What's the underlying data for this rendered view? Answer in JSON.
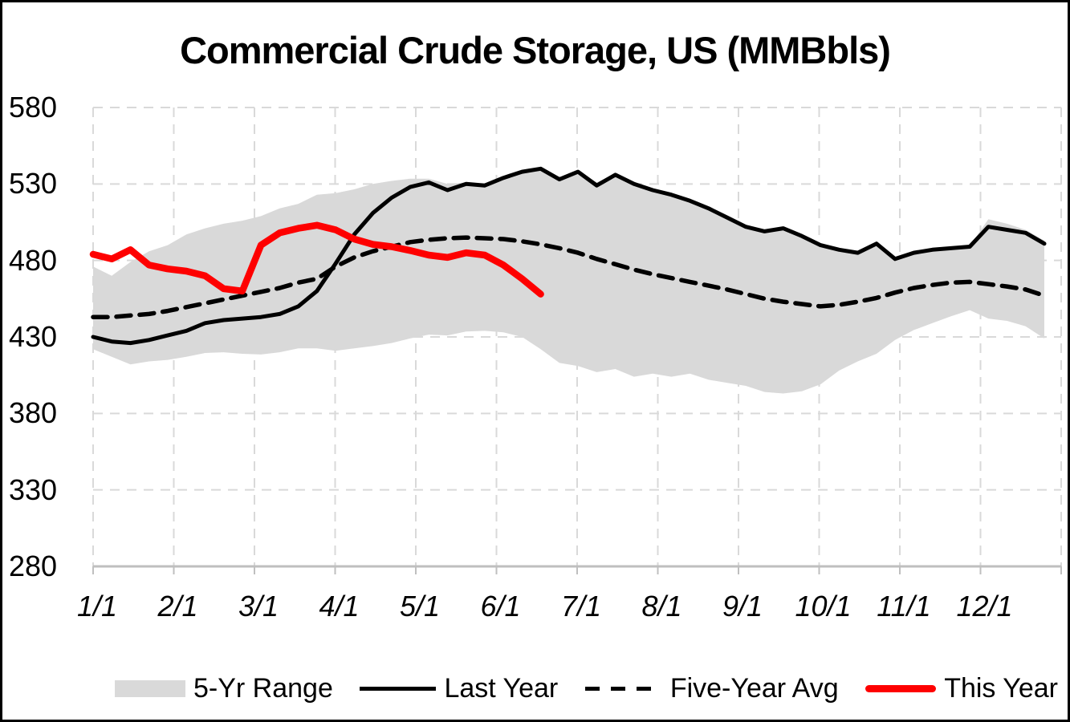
{
  "title": "Commercial Crude Storage, US (MMBbls)",
  "colors": {
    "background": "#ffffff",
    "border": "#000000",
    "band_fill": "#d9d9d9",
    "gridline": "#d9d9d9",
    "axis_line": "#bfbfbf",
    "black_series": "#000000",
    "red_series": "#fe0000",
    "text": "#000000"
  },
  "chart_data": {
    "type": "line",
    "title": "Commercial Crude Storage, US (MMBbls)",
    "xlabel": "",
    "ylabel": "",
    "ylim": [
      280,
      580
    ],
    "y_ticks": [
      280,
      330,
      380,
      430,
      480,
      530,
      580
    ],
    "y_tick_labels": [
      "280",
      "330",
      "380",
      "430",
      "480",
      "530",
      "580"
    ],
    "x_tick_labels": [
      "1/1",
      "2/1",
      "3/1",
      "4/1",
      "5/1",
      "6/1",
      "7/1",
      "8/1",
      "9/1",
      "10/1",
      "11/1",
      "12/1"
    ],
    "x_unit": "weekly points, Jan 1 through late December",
    "grid": true,
    "legend_position": "bottom",
    "series": [
      {
        "name": "5-Yr Range",
        "type": "band",
        "color": "#d9d9d9",
        "marker": "band-swatch-icon",
        "upper": [
          476,
          470,
          479,
          486,
          490,
          497,
          501,
          504,
          506,
          509,
          514,
          517,
          523,
          524,
          526.5,
          530,
          532,
          533.5,
          533.5,
          530,
          531,
          530,
          534,
          538.5,
          540,
          534,
          538.5,
          531,
          536.5,
          531,
          527,
          523.5,
          519.5,
          514.5,
          508.5,
          503,
          500,
          501.5,
          496.5,
          490.5,
          488,
          486,
          491.5,
          481.5,
          486,
          488,
          488.5,
          489.5,
          507,
          504,
          500,
          493
        ],
        "lower": [
          422,
          417,
          412,
          414,
          415,
          417,
          419.5,
          420,
          419,
          418.5,
          420,
          422.5,
          422.5,
          421,
          422.5,
          424,
          426,
          429,
          431.5,
          431,
          433.5,
          434,
          433,
          430,
          422,
          413,
          411,
          407,
          409,
          404,
          406,
          404,
          406,
          402,
          400,
          398,
          394,
          393,
          394.5,
          399,
          408,
          414,
          419,
          428,
          434.5,
          439,
          443.5,
          447.5,
          442,
          440.5,
          437,
          429
        ]
      },
      {
        "name": "Last Year",
        "type": "line",
        "style": "solid",
        "color": "#000000",
        "stroke_width": 5,
        "marker": "solid-line-swatch-icon",
        "values": [
          430,
          427,
          426,
          428,
          431,
          434,
          439,
          441,
          442,
          443,
          445,
          450,
          460,
          478,
          497,
          511,
          521,
          528,
          531,
          526,
          530,
          529,
          534,
          538,
          540,
          533,
          538,
          529,
          536,
          530,
          526,
          523,
          519,
          514,
          508,
          502,
          499,
          501,
          496,
          490,
          487,
          485,
          491,
          481,
          485,
          487,
          488,
          489,
          502,
          500,
          498,
          491
        ]
      },
      {
        "name": "Five-Year Avg",
        "type": "line",
        "style": "dashed",
        "color": "#000000",
        "stroke_width": 5.5,
        "marker": "dashed-line-swatch-icon",
        "values": [
          443,
          443,
          444,
          445,
          447,
          449.5,
          452,
          454.5,
          457,
          459.5,
          462,
          465.5,
          468,
          476,
          482,
          486,
          489,
          492,
          493.5,
          494.5,
          495,
          494.5,
          494,
          492.5,
          490.5,
          488,
          485,
          481,
          477.5,
          474,
          471,
          468.5,
          466,
          463.5,
          461,
          458,
          455,
          453,
          451.5,
          450,
          451,
          453,
          455.5,
          459,
          462,
          464,
          465.5,
          466,
          464.5,
          463,
          461,
          457
        ]
      },
      {
        "name": "This Year",
        "type": "line",
        "style": "solid",
        "color": "#fe0000",
        "stroke_width": 8.5,
        "marker": "thick-line-swatch-icon",
        "values": [
          484,
          481,
          487,
          477,
          474.5,
          473,
          470,
          461.5,
          460,
          490,
          498,
          501,
          503,
          500,
          494,
          490.5,
          489,
          486.5,
          483.5,
          482,
          485,
          483.5,
          477,
          468,
          458
        ]
      }
    ]
  }
}
